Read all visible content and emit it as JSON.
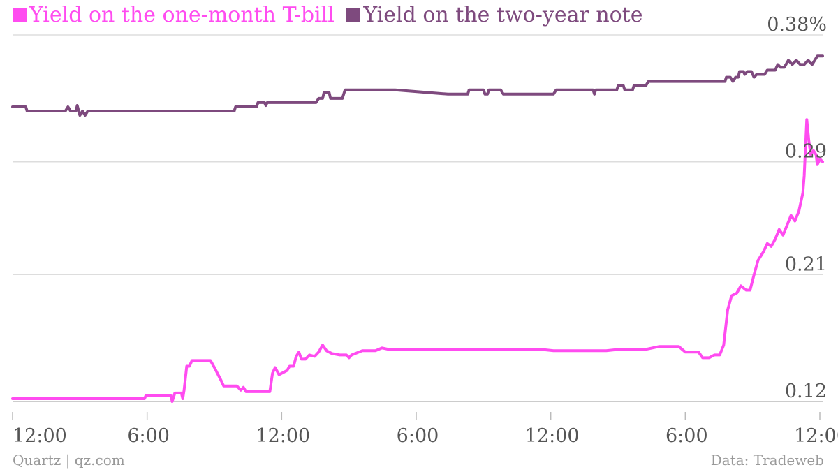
{
  "chart_data": {
    "type": "line",
    "y_unit": "%",
    "ylim": [
      0.12,
      0.38
    ],
    "y_ticks": [
      "0.12",
      "0.21",
      "0.29",
      "0.38%"
    ],
    "y_tick_values": [
      0.12,
      0.21,
      0.29,
      0.38
    ],
    "x_ticks": [
      "12:00",
      "6:00",
      "12:00",
      "6:00",
      "12:00",
      "6:00",
      "12:00"
    ],
    "grid": true,
    "legend_position": "top-left",
    "series": [
      {
        "name": "Yield on the one-month T-bill",
        "color": "#ff4cf0",
        "points": [
          [
            0.0,
            0.122
          ],
          [
            10.0,
            0.122
          ],
          [
            10.1,
            0.124
          ],
          [
            12.0,
            0.124
          ],
          [
            12.1,
            0.12
          ],
          [
            12.3,
            0.126
          ],
          [
            12.8,
            0.126
          ],
          [
            12.9,
            0.122
          ],
          [
            13.0,
            0.128
          ],
          [
            13.2,
            0.145
          ],
          [
            13.4,
            0.145
          ],
          [
            13.6,
            0.149
          ],
          [
            14.0,
            0.149
          ],
          [
            15.0,
            0.149
          ],
          [
            15.3,
            0.144
          ],
          [
            15.8,
            0.135
          ],
          [
            16.0,
            0.131
          ],
          [
            17.0,
            0.131
          ],
          [
            17.3,
            0.128
          ],
          [
            17.5,
            0.13
          ],
          [
            17.7,
            0.127
          ],
          [
            18.0,
            0.127
          ],
          [
            19.5,
            0.127
          ],
          [
            19.7,
            0.14
          ],
          [
            19.9,
            0.144
          ],
          [
            20.2,
            0.139
          ],
          [
            20.8,
            0.142
          ],
          [
            21.0,
            0.145
          ],
          [
            21.3,
            0.145
          ],
          [
            21.5,
            0.152
          ],
          [
            21.7,
            0.155
          ],
          [
            21.9,
            0.15
          ],
          [
            22.2,
            0.15
          ],
          [
            22.5,
            0.153
          ],
          [
            22.9,
            0.152
          ],
          [
            23.2,
            0.155
          ],
          [
            23.5,
            0.16
          ],
          [
            23.8,
            0.156
          ],
          [
            24.2,
            0.154
          ],
          [
            24.8,
            0.153
          ],
          [
            25.3,
            0.153
          ],
          [
            25.5,
            0.151
          ],
          [
            25.7,
            0.153
          ],
          [
            26.5,
            0.156
          ],
          [
            27.5,
            0.156
          ],
          [
            28.0,
            0.158
          ],
          [
            28.5,
            0.157
          ],
          [
            30.0,
            0.157
          ],
          [
            35.0,
            0.157
          ],
          [
            40.0,
            0.157
          ],
          [
            41.0,
            0.156
          ],
          [
            45.0,
            0.156
          ],
          [
            46.0,
            0.157
          ],
          [
            48.0,
            0.157
          ],
          [
            49.0,
            0.159
          ],
          [
            50.5,
            0.159
          ],
          [
            51.0,
            0.155
          ],
          [
            52.0,
            0.155
          ],
          [
            52.3,
            0.151
          ],
          [
            52.8,
            0.151
          ],
          [
            53.2,
            0.153
          ],
          [
            53.6,
            0.153
          ],
          [
            53.9,
            0.16
          ],
          [
            54.2,
            0.185
          ],
          [
            54.5,
            0.195
          ],
          [
            54.9,
            0.197
          ],
          [
            55.2,
            0.202
          ],
          [
            55.6,
            0.199
          ],
          [
            55.9,
            0.199
          ],
          [
            56.2,
            0.21
          ],
          [
            56.5,
            0.22
          ],
          [
            56.9,
            0.226
          ],
          [
            57.2,
            0.232
          ],
          [
            57.5,
            0.23
          ],
          [
            57.8,
            0.235
          ],
          [
            58.1,
            0.242
          ],
          [
            58.4,
            0.238
          ],
          [
            58.7,
            0.245
          ],
          [
            59.0,
            0.252
          ],
          [
            59.3,
            0.248
          ],
          [
            59.6,
            0.255
          ],
          [
            59.9,
            0.268
          ],
          [
            60.0,
            0.28
          ],
          [
            60.2,
            0.32
          ],
          [
            60.35,
            0.305
          ],
          [
            60.5,
            0.295
          ],
          [
            60.7,
            0.298
          ],
          [
            60.9,
            0.295
          ],
          [
            61.0,
            0.288
          ],
          [
            61.2,
            0.292
          ],
          [
            61.4,
            0.29
          ]
        ]
      },
      {
        "name": "Yield on the two-year note",
        "color": "#7e4a7e",
        "points": [
          [
            0.0,
            0.329
          ],
          [
            1.0,
            0.329
          ],
          [
            1.1,
            0.326
          ],
          [
            4.0,
            0.326
          ],
          [
            4.2,
            0.329
          ],
          [
            4.4,
            0.326
          ],
          [
            4.8,
            0.326
          ],
          [
            4.9,
            0.33
          ],
          [
            5.1,
            0.323
          ],
          [
            5.3,
            0.326
          ],
          [
            5.5,
            0.323
          ],
          [
            5.7,
            0.326
          ],
          [
            8.0,
            0.326
          ],
          [
            12.0,
            0.326
          ],
          [
            16.0,
            0.326
          ],
          [
            16.8,
            0.326
          ],
          [
            16.9,
            0.329
          ],
          [
            18.5,
            0.329
          ],
          [
            18.6,
            0.332
          ],
          [
            19.1,
            0.332
          ],
          [
            19.2,
            0.33
          ],
          [
            19.3,
            0.332
          ],
          [
            23.0,
            0.332
          ],
          [
            23.2,
            0.335
          ],
          [
            23.5,
            0.335
          ],
          [
            23.6,
            0.339
          ],
          [
            24.0,
            0.339
          ],
          [
            24.1,
            0.335
          ],
          [
            25.0,
            0.335
          ],
          [
            25.2,
            0.341
          ],
          [
            29.0,
            0.341
          ],
          [
            33.0,
            0.338
          ],
          [
            34.5,
            0.338
          ],
          [
            34.6,
            0.341
          ],
          [
            35.7,
            0.341
          ],
          [
            35.8,
            0.338
          ],
          [
            36.0,
            0.338
          ],
          [
            36.1,
            0.341
          ],
          [
            37.0,
            0.341
          ],
          [
            37.2,
            0.338
          ],
          [
            41.0,
            0.338
          ],
          [
            41.2,
            0.341
          ],
          [
            44.0,
            0.341
          ],
          [
            44.1,
            0.338
          ],
          [
            44.2,
            0.341
          ],
          [
            45.8,
            0.341
          ],
          [
            45.9,
            0.344
          ],
          [
            46.3,
            0.344
          ],
          [
            46.4,
            0.341
          ],
          [
            47.0,
            0.341
          ],
          [
            47.1,
            0.344
          ],
          [
            48.0,
            0.344
          ],
          [
            48.2,
            0.347
          ],
          [
            53.0,
            0.347
          ],
          [
            54.0,
            0.347
          ],
          [
            54.1,
            0.35
          ],
          [
            54.4,
            0.35
          ],
          [
            54.6,
            0.347
          ],
          [
            54.8,
            0.35
          ],
          [
            55.0,
            0.35
          ],
          [
            55.1,
            0.354
          ],
          [
            55.4,
            0.354
          ],
          [
            55.5,
            0.352
          ],
          [
            55.7,
            0.354
          ],
          [
            56.0,
            0.354
          ],
          [
            56.2,
            0.35
          ],
          [
            56.4,
            0.352
          ],
          [
            57.0,
            0.352
          ],
          [
            57.2,
            0.355
          ],
          [
            57.8,
            0.355
          ],
          [
            58.0,
            0.359
          ],
          [
            58.2,
            0.357
          ],
          [
            58.5,
            0.357
          ],
          [
            58.8,
            0.362
          ],
          [
            59.1,
            0.359
          ],
          [
            59.4,
            0.362
          ],
          [
            59.7,
            0.359
          ],
          [
            60.0,
            0.359
          ],
          [
            60.3,
            0.362
          ],
          [
            60.6,
            0.359
          ],
          [
            60.8,
            0.362
          ],
          [
            61.0,
            0.365
          ],
          [
            61.4,
            0.365
          ]
        ]
      }
    ]
  },
  "footer": {
    "source_left": "Quartz | qz.com",
    "source_right": "Data: Tradeweb"
  }
}
